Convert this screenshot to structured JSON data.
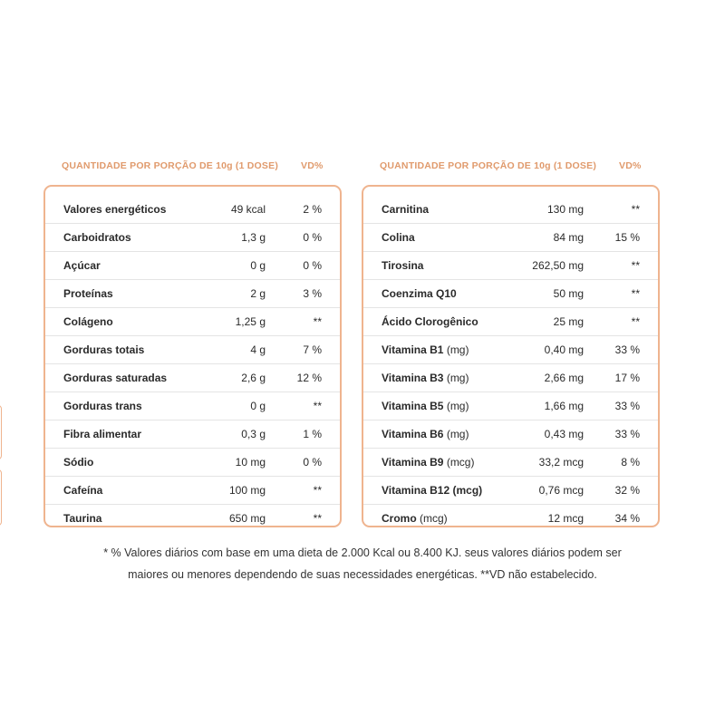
{
  "left_panel": {
    "header_quantity": "QUANTIDADE POR PORÇÃO DE 10g (1 DOSE)",
    "header_vd": "VD%",
    "rows": [
      {
        "name": "Valores energéticos",
        "unit": "",
        "quantity": "49 kcal",
        "vd": "2 %"
      },
      {
        "name": "Carboidratos",
        "unit": "",
        "quantity": "1,3 g",
        "vd": "0 %"
      },
      {
        "name": "Açúcar",
        "unit": "",
        "quantity": "0 g",
        "vd": "0 %"
      },
      {
        "name": "Proteínas",
        "unit": "",
        "quantity": "2 g",
        "vd": "3 %"
      },
      {
        "name": "Colágeno",
        "unit": "",
        "quantity": "1,25 g",
        "vd": "**"
      },
      {
        "name": "Gorduras totais",
        "unit": "",
        "quantity": "4 g",
        "vd": "7 %"
      },
      {
        "name": "Gorduras saturadas",
        "unit": "",
        "quantity": "2,6 g",
        "vd": "12 %"
      },
      {
        "name": "Gorduras trans",
        "unit": "",
        "quantity": "0 g",
        "vd": "**"
      },
      {
        "name": "Fibra alimentar",
        "unit": "",
        "quantity": "0,3 g",
        "vd": "1 %"
      },
      {
        "name": "Sódio",
        "unit": "",
        "quantity": "10 mg",
        "vd": "0 %"
      },
      {
        "name": "Cafeína",
        "unit": "",
        "quantity": "100 mg",
        "vd": "**"
      },
      {
        "name": "Taurina",
        "unit": "",
        "quantity": "650 mg",
        "vd": "**"
      }
    ]
  },
  "right_panel": {
    "header_quantity": "QUANTIDADE POR PORÇÃO DE 10g (1 DOSE)",
    "header_vd": "VD%",
    "rows": [
      {
        "name": "Carnitina",
        "unit": "",
        "quantity": "130 mg",
        "vd": "**"
      },
      {
        "name": "Colina",
        "unit": "",
        "quantity": "84 mg",
        "vd": "15 %"
      },
      {
        "name": "Tirosina",
        "unit": "",
        "quantity": "262,50 mg",
        "vd": "**"
      },
      {
        "name": "Coenzima Q10",
        "unit": "",
        "quantity": "50 mg",
        "vd": "**"
      },
      {
        "name": "Ácido Clorogênico",
        "unit": "",
        "quantity": "25 mg",
        "vd": "**"
      },
      {
        "name": "Vitamina B1",
        "unit": " (mg)",
        "quantity": "0,40 mg",
        "vd": "33 %"
      },
      {
        "name": "Vitamina B3",
        "unit": " (mg)",
        "quantity": "2,66 mg",
        "vd": "17 %"
      },
      {
        "name": "Vitamina B5",
        "unit": " (mg)",
        "quantity": "1,66 mg",
        "vd": "33 %"
      },
      {
        "name": "Vitamina B6",
        "unit": " (mg)",
        "quantity": "0,43 mg",
        "vd": "33 %"
      },
      {
        "name": "Vitamina B9",
        "unit": " (mcg)",
        "quantity": "33,2 mcg",
        "vd": "8 %"
      },
      {
        "name": "Vitamina B12 (mcg)",
        "unit": "",
        "quantity": "0,76 mcg",
        "vd": "32 %"
      },
      {
        "name": "Cromo",
        "unit": " (mcg)",
        "quantity": "12 mcg",
        "vd": "34 %"
      }
    ]
  },
  "footnote": {
    "line1": "* % Valores diários com base em uma dieta de 2.000 Kcal ou 8.400 KJ. seus valores diários podem ser",
    "line2": "maiores ou menores dependendo de suas necessidades energéticas. **VD não estabelecido."
  },
  "colors": {
    "accent": "#efb48f",
    "header_text": "#e09a6c"
  }
}
